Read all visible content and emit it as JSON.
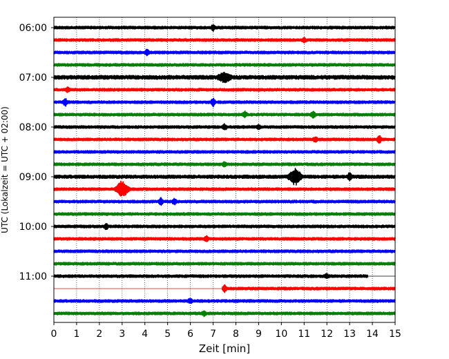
{
  "chart_data": {
    "type": "line",
    "subtype": "helicorder",
    "title": "",
    "xlabel": "Zeit  [min]",
    "ylabel": "UTC (Lokalzeit = UTC + 02:00)",
    "xlim": [
      0,
      15
    ],
    "x_ticks": [
      "0",
      "1",
      "2",
      "3",
      "4",
      "5",
      "6",
      "7",
      "8",
      "9",
      "10",
      "11",
      "12",
      "13",
      "14",
      "15"
    ],
    "y_ticks": [
      "06:00",
      "07:00",
      "08:00",
      "09:00",
      "10:00",
      "11:00"
    ],
    "grid": "vertical dotted",
    "colors": [
      "#000000",
      "#ff0000",
      "#0000ff",
      "#008000"
    ],
    "traces": [
      {
        "start": "06:00",
        "color": "#000000",
        "amplitude": 1.0,
        "events": [
          {
            "x": 7.0,
            "amp": 4
          }
        ]
      },
      {
        "start": "06:15",
        "color": "#ff0000",
        "amplitude": 1.0,
        "events": [
          {
            "x": 11.0,
            "amp": 3
          }
        ]
      },
      {
        "start": "06:30",
        "color": "#0000ff",
        "amplitude": 1.0,
        "events": [
          {
            "x": 4.1,
            "amp": 4
          }
        ]
      },
      {
        "start": "06:45",
        "color": "#008000",
        "amplitude": 1.0,
        "events": []
      },
      {
        "start": "07:00",
        "color": "#000000",
        "amplitude": 1.4,
        "events": [
          {
            "x": 7.5,
            "amp": 7
          }
        ]
      },
      {
        "start": "07:15",
        "color": "#ff0000",
        "amplitude": 1.0,
        "events": [
          {
            "x": 0.6,
            "amp": 3
          }
        ]
      },
      {
        "start": "07:30",
        "color": "#0000ff",
        "amplitude": 1.0,
        "events": [
          {
            "x": 0.5,
            "amp": 5
          },
          {
            "x": 7.0,
            "amp": 6
          }
        ]
      },
      {
        "start": "07:45",
        "color": "#008000",
        "amplitude": 1.0,
        "events": [
          {
            "x": 8.4,
            "amp": 4
          },
          {
            "x": 11.4,
            "amp": 5
          }
        ]
      },
      {
        "start": "08:00",
        "color": "#000000",
        "amplitude": 1.0,
        "events": [
          {
            "x": 7.5,
            "amp": 4
          },
          {
            "x": 9.0,
            "amp": 3
          }
        ]
      },
      {
        "start": "08:15",
        "color": "#ff0000",
        "amplitude": 1.0,
        "events": [
          {
            "x": 11.5,
            "amp": 4
          },
          {
            "x": 14.3,
            "amp": 6
          }
        ]
      },
      {
        "start": "08:30",
        "color": "#0000ff",
        "amplitude": 1.0,
        "events": []
      },
      {
        "start": "08:45",
        "color": "#008000",
        "amplitude": 1.0,
        "events": [
          {
            "x": 7.5,
            "amp": 3
          }
        ]
      },
      {
        "start": "09:00",
        "color": "#000000",
        "amplitude": 1.2,
        "events": [
          {
            "x": 10.6,
            "amp": 12
          },
          {
            "x": 13.0,
            "amp": 6
          }
        ]
      },
      {
        "start": "09:15",
        "color": "#ff0000",
        "amplitude": 1.0,
        "events": [
          {
            "x": 3.0,
            "amp": 12
          }
        ]
      },
      {
        "start": "09:30",
        "color": "#0000ff",
        "amplitude": 1.0,
        "events": [
          {
            "x": 4.7,
            "amp": 5
          },
          {
            "x": 5.3,
            "amp": 4
          }
        ]
      },
      {
        "start": "09:45",
        "color": "#008000",
        "amplitude": 1.0,
        "events": []
      },
      {
        "start": "10:00",
        "color": "#000000",
        "amplitude": 1.0,
        "events": [
          {
            "x": 2.3,
            "amp": 4
          }
        ]
      },
      {
        "start": "10:15",
        "color": "#ff0000",
        "amplitude": 1.0,
        "events": [
          {
            "x": 6.7,
            "amp": 4
          }
        ]
      },
      {
        "start": "10:30",
        "color": "#0000ff",
        "amplitude": 1.0,
        "events": []
      },
      {
        "start": "10:45",
        "color": "#008000",
        "amplitude": 1.0,
        "events": []
      },
      {
        "start": "11:00",
        "color": "#000000",
        "amplitude": 1.0,
        "end_x": 13.8,
        "events": [
          {
            "x": 12.0,
            "amp": 3
          }
        ]
      },
      {
        "start": "11:15",
        "color": "#ff0000",
        "amplitude": 1.0,
        "start_x": 7.4,
        "events": [
          {
            "x": 7.5,
            "amp": 5
          }
        ]
      },
      {
        "start": "11:30",
        "color": "#0000ff",
        "amplitude": 1.0,
        "events": [
          {
            "x": 6.0,
            "amp": 4
          }
        ]
      },
      {
        "start": "11:45",
        "color": "#008000",
        "amplitude": 1.0,
        "events": [
          {
            "x": 6.6,
            "amp": 3
          }
        ]
      }
    ]
  }
}
